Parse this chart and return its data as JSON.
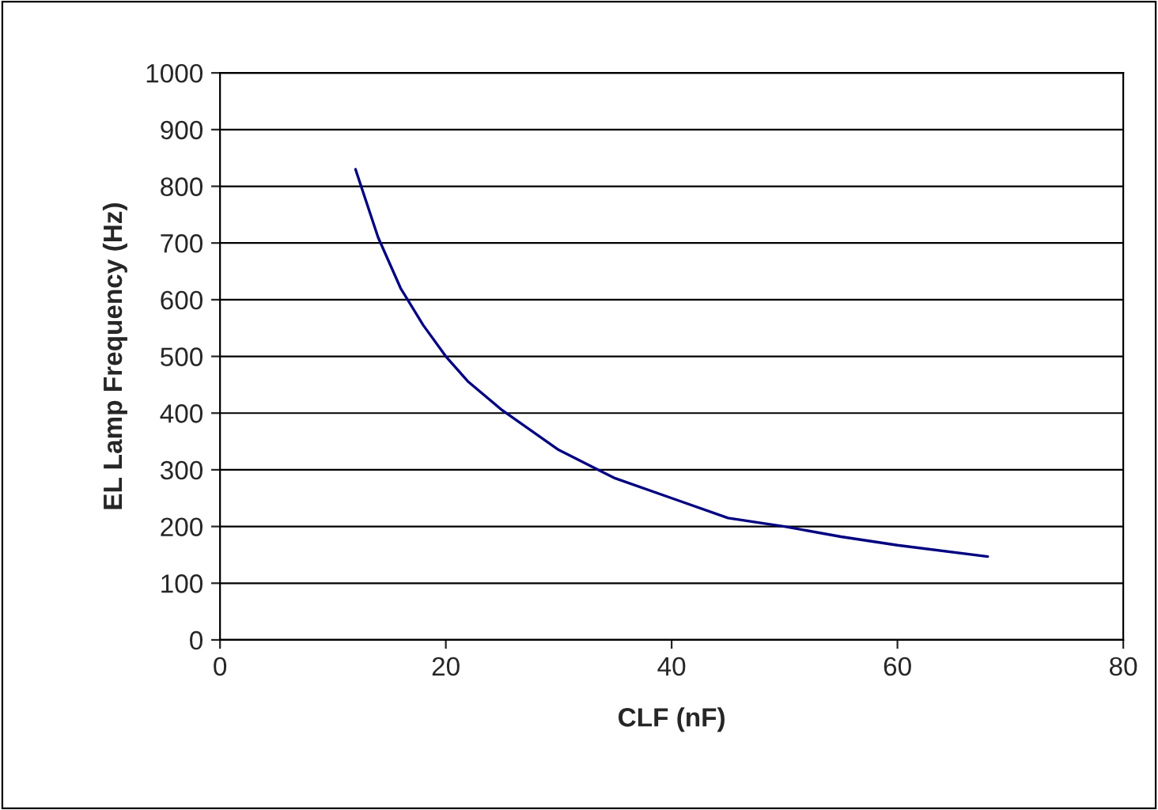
{
  "chart_data": {
    "type": "line",
    "xlabel": "CLF (nF)",
    "ylabel": "EL Lamp Frequency (Hz)",
    "x": [
      12,
      14,
      16,
      18,
      20,
      22,
      25,
      30,
      35,
      40,
      45,
      50,
      55,
      60,
      68
    ],
    "series": [
      {
        "color": "#000080",
        "values": [
          830,
          710,
          620,
          555,
          500,
          455,
          405,
          335,
          285,
          250,
          215,
          200,
          182,
          167,
          147
        ]
      }
    ],
    "xlim": [
      0,
      80
    ],
    "xticks": [
      0,
      20,
      40,
      60,
      80
    ],
    "ylim": [
      0,
      1000
    ],
    "yticks": [
      0,
      100,
      200,
      300,
      400,
      500,
      600,
      700,
      800,
      900,
      1000
    ],
    "grid": "y",
    "marker": "none",
    "line_style": "solid",
    "legend": false
  }
}
